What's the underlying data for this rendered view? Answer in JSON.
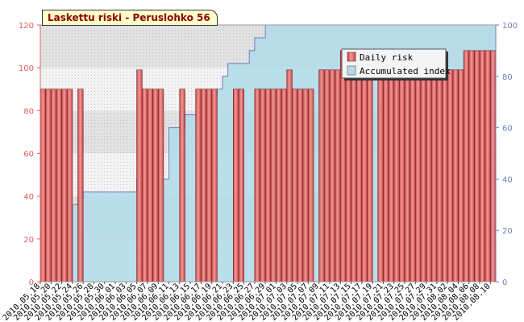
{
  "chart_data": {
    "type": "bar",
    "title": "Laskettu riski - Peruslohko 56",
    "xlabel": "",
    "ylabel": "",
    "ylim": [
      0,
      120
    ],
    "y_ticks": [
      0,
      20,
      40,
      60,
      80,
      100,
      120
    ],
    "y2lim": [
      0,
      100
    ],
    "y2_ticks": [
      0,
      20,
      40,
      60,
      80,
      100
    ],
    "grid": true,
    "legend_position": "top-right",
    "categories": [
      "2010.05.18",
      "2010.05.19",
      "2010.05.20",
      "2010.05.21",
      "2010.05.22",
      "2010.05.23",
      "2010.05.24",
      "2010.05.25",
      "2010.05.26",
      "2010.05.27",
      "2010.05.28",
      "2010.05.29",
      "2010.05.30",
      "2010.05.31",
      "2010.06.01",
      "2010.06.02",
      "2010.06.03",
      "2010.06.04",
      "2010.06.05",
      "2010.06.06",
      "2010.06.07",
      "2010.06.08",
      "2010.06.09",
      "2010.06.10",
      "2010.06.11",
      "2010.06.12",
      "2010.06.13",
      "2010.06.14",
      "2010.06.15",
      "2010.06.16",
      "2010.06.17",
      "2010.06.18",
      "2010.06.19",
      "2010.06.20",
      "2010.06.21",
      "2010.06.22",
      "2010.06.23",
      "2010.06.24",
      "2010.06.25",
      "2010.06.26",
      "2010.06.27",
      "2010.06.28",
      "2010.06.29",
      "2010.06.30",
      "2010.07.01",
      "2010.07.02",
      "2010.07.03",
      "2010.07.04",
      "2010.07.05",
      "2010.07.06",
      "2010.07.07",
      "2010.07.08",
      "2010.07.09",
      "2010.07.10",
      "2010.07.11",
      "2010.07.12",
      "2010.07.13",
      "2010.07.14",
      "2010.07.15",
      "2010.07.16",
      "2010.07.17",
      "2010.07.18",
      "2010.07.19",
      "2010.07.20",
      "2010.07.21",
      "2010.07.22",
      "2010.07.23",
      "2010.07.24",
      "2010.07.25",
      "2010.07.26",
      "2010.07.27",
      "2010.07.28",
      "2010.07.29",
      "2010.07.30",
      "2010.07.31",
      "2010.08.01",
      "2010.08.02",
      "2010.08.03",
      "2010.08.04",
      "2010.08.05",
      "2010.08.06",
      "2010.08.07",
      "2010.08.08",
      "2010.08.09",
      "2010.08.10"
    ],
    "x_tick_labels": [
      "2010.05.18",
      "2010.05.20",
      "2010.05.22",
      "2010.05.24",
      "2010.05.26",
      "2010.05.28",
      "2010.05.30",
      "2010.06.01",
      "2010.06.03",
      "2010.06.05",
      "2010.06.07",
      "2010.06.09",
      "2010.06.11",
      "2010.06.13",
      "2010.06.15",
      "2010.06.17",
      "2010.06.19",
      "2010.06.21",
      "2010.06.23",
      "2010.06.25",
      "2010.06.27",
      "2010.06.29",
      "2010.07.01",
      "2010.07.03",
      "2010.07.05",
      "2010.07.07",
      "2010.07.09",
      "2010.07.11",
      "2010.07.13",
      "2010.07.15",
      "2010.07.17",
      "2010.07.19",
      "2010.07.21",
      "2010.07.23",
      "2010.07.25",
      "2010.07.27",
      "2010.07.29",
      "2010.07.31",
      "2010.08.02",
      "2010.08.04",
      "2010.08.06",
      "2010.08.08",
      "2010.08.10"
    ],
    "series": [
      {
        "name": "Daily risk",
        "axis": "left",
        "color": "#e06666",
        "values": [
          90,
          90,
          90,
          90,
          90,
          90,
          0,
          90,
          0,
          0,
          0,
          0,
          0,
          0,
          0,
          0,
          0,
          0,
          99,
          90,
          90,
          90,
          90,
          0,
          0,
          0,
          90,
          0,
          0,
          90,
          90,
          90,
          90,
          0,
          0,
          0,
          90,
          90,
          0,
          0,
          90,
          90,
          90,
          90,
          90,
          90,
          99,
          90,
          90,
          90,
          90,
          0,
          99,
          99,
          99,
          99,
          108,
          99,
          99,
          99,
          99,
          99,
          0,
          99,
          99,
          99,
          99,
          99,
          99,
          99,
          99,
          99,
          99,
          99,
          99,
          99,
          99,
          99,
          99,
          108,
          108,
          108,
          108,
          108,
          108
        ]
      },
      {
        "name": "Accumulated index",
        "axis": "right",
        "color": "#b3dbe9",
        "values": [
          0,
          0,
          0,
          0,
          0,
          0,
          30,
          33,
          35,
          35,
          35,
          35,
          35,
          35,
          35,
          35,
          35,
          35,
          40,
          40,
          40,
          40,
          40,
          40,
          60,
          60,
          60,
          65,
          65,
          65,
          68,
          72,
          72,
          75,
          80,
          85,
          85,
          85,
          85,
          90,
          95,
          95,
          100,
          100,
          100,
          100,
          100,
          100,
          100,
          100,
          100,
          100,
          100,
          100,
          100,
          100,
          100,
          100,
          100,
          100,
          100,
          100,
          100,
          100,
          100,
          100,
          100,
          100,
          100,
          100,
          100,
          100,
          100,
          100,
          100,
          100,
          100,
          100,
          100,
          100,
          100,
          100,
          100,
          100,
          100
        ]
      }
    ]
  }
}
